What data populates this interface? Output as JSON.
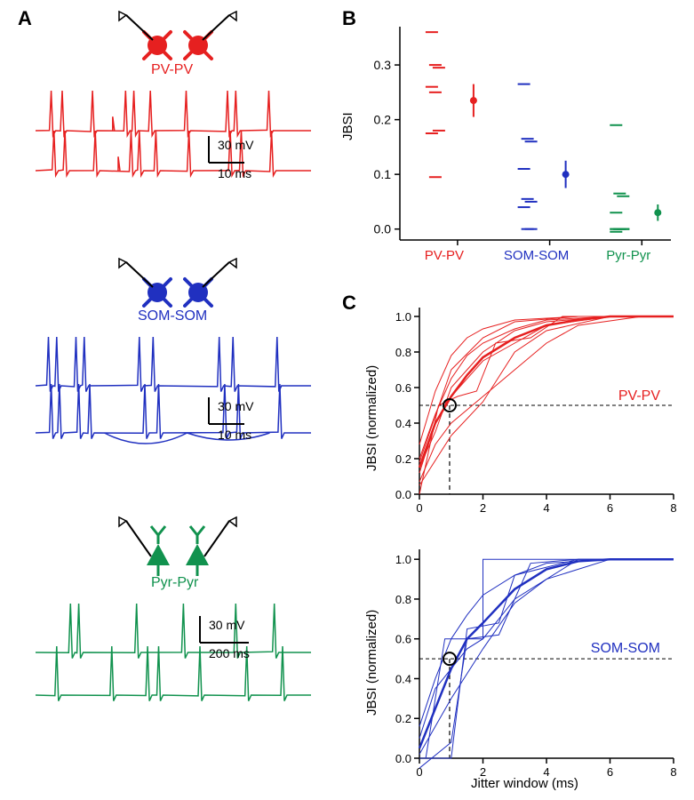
{
  "colors": {
    "pv": "#e62020",
    "som": "#2030c0",
    "pyr": "#11924e",
    "axis": "#000000",
    "dash": "#000000"
  },
  "fonts": {
    "panel_label_size": 22,
    "group_label_size": 16,
    "axis_tick_size": 14,
    "axis_label_size": 15
  },
  "labels": {
    "A": "A",
    "B": "B",
    "C": "C",
    "pv": "PV-PV",
    "som": "SOM-SOM",
    "pyr": "Pyr-Pyr",
    "jbsi": "JBSI",
    "jbsi_norm": "JBSI (normalized)",
    "jitter": "Jitter window (ms)"
  },
  "panelA": {
    "scalebars": {
      "pv": {
        "v_value": "30 mV",
        "h_value": "10 ms"
      },
      "som": {
        "v_value": "30 mV",
        "h_value": "10 ms"
      },
      "pyr": {
        "v_value": "30 mV",
        "h_value": "200 ms"
      }
    },
    "traces_pv": {
      "y_scale": 45,
      "baseline1": 55,
      "baseline2": 100,
      "spikes1": [
        0.06,
        0.1,
        0.21,
        0.33,
        0.36,
        0.42,
        0.55,
        0.7,
        0.73,
        0.85
      ],
      "spikes2": [
        0.07,
        0.11,
        0.22,
        0.35,
        0.38,
        0.44,
        0.56,
        0.71,
        0.75,
        0.86
      ],
      "partials1": [
        [
          0.28,
          0.3
        ]
      ],
      "partials2": [
        [
          0.3,
          0.35
        ]
      ]
    },
    "traces_som": {
      "y_scale": 55,
      "baseline1": 62,
      "baseline2": 115,
      "spikes1": [
        0.05,
        0.08,
        0.15,
        0.18,
        0.38,
        0.43,
        0.67,
        0.72,
        0.88
      ],
      "spikes2": [
        0.06,
        0.09,
        0.16,
        0.2,
        0.4,
        0.45,
        0.69,
        0.74,
        0.89
      ],
      "undershoot2": [
        [
          0.25,
          0.55,
          12
        ],
        [
          0.55,
          0.85,
          8
        ]
      ]
    },
    "traces_pyr": {
      "y_scale": 55,
      "baseline1": 62,
      "baseline2": 110,
      "spikes1": [
        0.13,
        0.16,
        0.37,
        0.54,
        0.73,
        0.87
      ],
      "spikes2": [
        0.08,
        0.28,
        0.41,
        0.45,
        0.6,
        0.77,
        0.9
      ]
    }
  },
  "panelB": {
    "ylim": [
      -0.02,
      0.37
    ],
    "ytick_step": 0.1,
    "yticks": [
      0.0,
      0.1,
      0.2,
      0.3
    ],
    "categories": [
      "PV-PV",
      "SOM-SOM",
      "Pyr-Pyr"
    ],
    "points": {
      "pv": [
        0.36,
        0.3,
        0.295,
        0.26,
        0.25,
        0.18,
        0.175,
        0.095
      ],
      "som": [
        0.265,
        0.165,
        0.16,
        0.11,
        0.055,
        0.05,
        0.04,
        0.0,
        0.0
      ],
      "pyr": [
        0.19,
        0.065,
        0.06,
        0.03,
        0.0,
        0.0,
        0.0,
        0.0,
        0.0,
        0.0,
        0.0,
        0.0,
        -0.005
      ]
    },
    "means": {
      "pv": {
        "y": 0.235,
        "err": 0.03
      },
      "som": {
        "y": 0.1,
        "err": 0.025
      },
      "pyr": {
        "y": 0.03,
        "err": 0.015
      }
    },
    "dash_width": 14
  },
  "panelC": {
    "xlim": [
      0,
      8
    ],
    "ylim": [
      0,
      1.05
    ],
    "xticks": [
      0,
      2,
      4,
      6,
      8
    ],
    "yticks": [
      0.0,
      0.2,
      0.4,
      0.6,
      0.8,
      1.0
    ],
    "half_marker_x": 0.95,
    "thin_width": 1,
    "thick_width": 2.5,
    "marker_radius": 7,
    "pv_curves": [
      [
        [
          0,
          0.2
        ],
        [
          0.5,
          0.45
        ],
        [
          1,
          0.65
        ],
        [
          1.5,
          0.78
        ],
        [
          2,
          0.85
        ],
        [
          3,
          0.93
        ],
        [
          4,
          0.98
        ],
        [
          6,
          1.0
        ],
        [
          8,
          1.0
        ]
      ],
      [
        [
          0,
          0.28
        ],
        [
          0.5,
          0.58
        ],
        [
          1,
          0.78
        ],
        [
          1.5,
          0.88
        ],
        [
          2,
          0.93
        ],
        [
          3,
          0.98
        ],
        [
          5,
          1.0
        ],
        [
          8,
          1.0
        ]
      ],
      [
        [
          0,
          0.15
        ],
        [
          0.5,
          0.35
        ],
        [
          1,
          0.6
        ],
        [
          1.5,
          0.7
        ],
        [
          2,
          0.8
        ],
        [
          3,
          0.92
        ],
        [
          4,
          0.97
        ],
        [
          6,
          1.0
        ],
        [
          8,
          1.0
        ]
      ],
      [
        [
          0,
          0.07
        ],
        [
          0.5,
          0.28
        ],
        [
          1,
          0.4
        ],
        [
          2,
          0.55
        ],
        [
          3,
          0.7
        ],
        [
          4,
          0.85
        ],
        [
          5,
          0.95
        ],
        [
          7,
          1.0
        ],
        [
          8,
          1.0
        ]
      ],
      [
        [
          0,
          0.12
        ],
        [
          0.5,
          0.4
        ],
        [
          1,
          0.55
        ],
        [
          2,
          0.75
        ],
        [
          3,
          0.85
        ],
        [
          4,
          0.95
        ],
        [
          6,
          1.0
        ],
        [
          8,
          1.0
        ]
      ],
      [
        [
          0,
          0.0
        ],
        [
          0.6,
          0.5
        ],
        [
          1.2,
          0.55
        ],
        [
          1.8,
          0.58
        ],
        [
          2.4,
          0.85
        ],
        [
          3.5,
          0.88
        ],
        [
          4.5,
          1.0
        ],
        [
          8,
          1.0
        ]
      ],
      [
        [
          0,
          0.05
        ],
        [
          1,
          0.33
        ],
        [
          2,
          0.52
        ],
        [
          3,
          0.8
        ],
        [
          4,
          0.92
        ],
        [
          6,
          1.0
        ],
        [
          8,
          1.0
        ]
      ],
      [
        [
          0,
          0.18
        ],
        [
          1,
          0.7
        ],
        [
          2,
          0.88
        ],
        [
          3,
          0.97
        ],
        [
          5,
          1.0
        ],
        [
          8,
          1.0
        ]
      ]
    ],
    "pv_mean": [
      [
        0,
        0.15
      ],
      [
        0.5,
        0.4
      ],
      [
        1,
        0.55
      ],
      [
        1.5,
        0.67
      ],
      [
        2,
        0.77
      ],
      [
        3,
        0.88
      ],
      [
        4,
        0.95
      ],
      [
        5,
        0.98
      ],
      [
        6,
        1.0
      ],
      [
        8,
        1.0
      ]
    ],
    "som_curves": [
      [
        [
          0,
          0.16
        ],
        [
          0.5,
          0.4
        ],
        [
          1,
          0.6
        ],
        [
          1.5,
          0.72
        ],
        [
          2,
          0.82
        ],
        [
          3,
          0.92
        ],
        [
          4,
          0.98
        ],
        [
          6,
          1.0
        ],
        [
          8,
          1.0
        ]
      ],
      [
        [
          0,
          0.1
        ],
        [
          0.5,
          0.35
        ],
        [
          1,
          0.45
        ],
        [
          1.5,
          0.55
        ],
        [
          2,
          0.6
        ],
        [
          3,
          0.8
        ],
        [
          4,
          0.9
        ],
        [
          5,
          1.0
        ],
        [
          8,
          1.0
        ]
      ],
      [
        [
          0,
          0.02
        ],
        [
          1,
          0.3
        ],
        [
          2,
          0.55
        ],
        [
          3,
          0.78
        ],
        [
          4,
          0.9
        ],
        [
          6,
          1.0
        ],
        [
          8,
          1.0
        ]
      ],
      [
        [
          0,
          0.0
        ],
        [
          0.2,
          0.0
        ],
        [
          0.8,
          0.6
        ],
        [
          0.8,
          0.6
        ],
        [
          2.0,
          0.6
        ],
        [
          2.0,
          1.0
        ],
        [
          8,
          1.0
        ]
      ],
      [
        [
          0,
          -0.05
        ],
        [
          1,
          0.08
        ],
        [
          1.5,
          0.6
        ],
        [
          2.5,
          0.62
        ],
        [
          3.5,
          0.98
        ],
        [
          5,
          1.0
        ],
        [
          8,
          1.0
        ]
      ],
      [
        [
          0,
          0.0
        ],
        [
          1,
          0.0
        ],
        [
          1.5,
          0.65
        ],
        [
          2.5,
          0.68
        ],
        [
          3.0,
          0.92
        ],
        [
          5,
          1.0
        ],
        [
          8,
          1.0
        ]
      ]
    ],
    "som_mean": [
      [
        0,
        0.05
      ],
      [
        0.5,
        0.25
      ],
      [
        1,
        0.45
      ],
      [
        1.5,
        0.6
      ],
      [
        2,
        0.68
      ],
      [
        3,
        0.85
      ],
      [
        4,
        0.95
      ],
      [
        5,
        0.99
      ],
      [
        6,
        1.0
      ],
      [
        8,
        1.0
      ]
    ]
  }
}
